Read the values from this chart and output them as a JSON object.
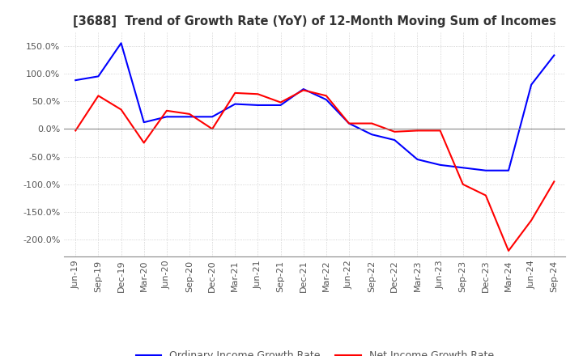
{
  "title": "[3688]  Trend of Growth Rate (YoY) of 12-Month Moving Sum of Incomes",
  "ylim": [
    -230,
    175
  ],
  "yticks": [
    150,
    100,
    50,
    0,
    -50,
    -100,
    -150,
    -200
  ],
  "legend_labels": [
    "Ordinary Income Growth Rate",
    "Net Income Growth Rate"
  ],
  "legend_colors": [
    "#0000ff",
    "#ff0000"
  ],
  "background_color": "#ffffff",
  "grid_color": "#c8c8c8",
  "x_labels": [
    "Jun-19",
    "Sep-19",
    "Dec-19",
    "Mar-20",
    "Jun-20",
    "Sep-20",
    "Dec-20",
    "Mar-21",
    "Jun-21",
    "Sep-21",
    "Dec-21",
    "Mar-22",
    "Jun-22",
    "Sep-22",
    "Dec-22",
    "Mar-23",
    "Jun-23",
    "Sep-23",
    "Dec-23",
    "Mar-24",
    "Jun-24",
    "Sep-24"
  ],
  "ordinary_income": [
    88,
    95,
    155,
    12,
    22,
    22,
    22,
    45,
    43,
    43,
    72,
    53,
    10,
    -10,
    -20,
    -55,
    -65,
    -70,
    -75,
    -75,
    80,
    133
  ],
  "net_income": [
    -3,
    60,
    35,
    -25,
    33,
    27,
    0,
    65,
    63,
    48,
    70,
    60,
    10,
    10,
    -5,
    -3,
    -3,
    -100,
    -120,
    -220,
    -165,
    -95
  ]
}
